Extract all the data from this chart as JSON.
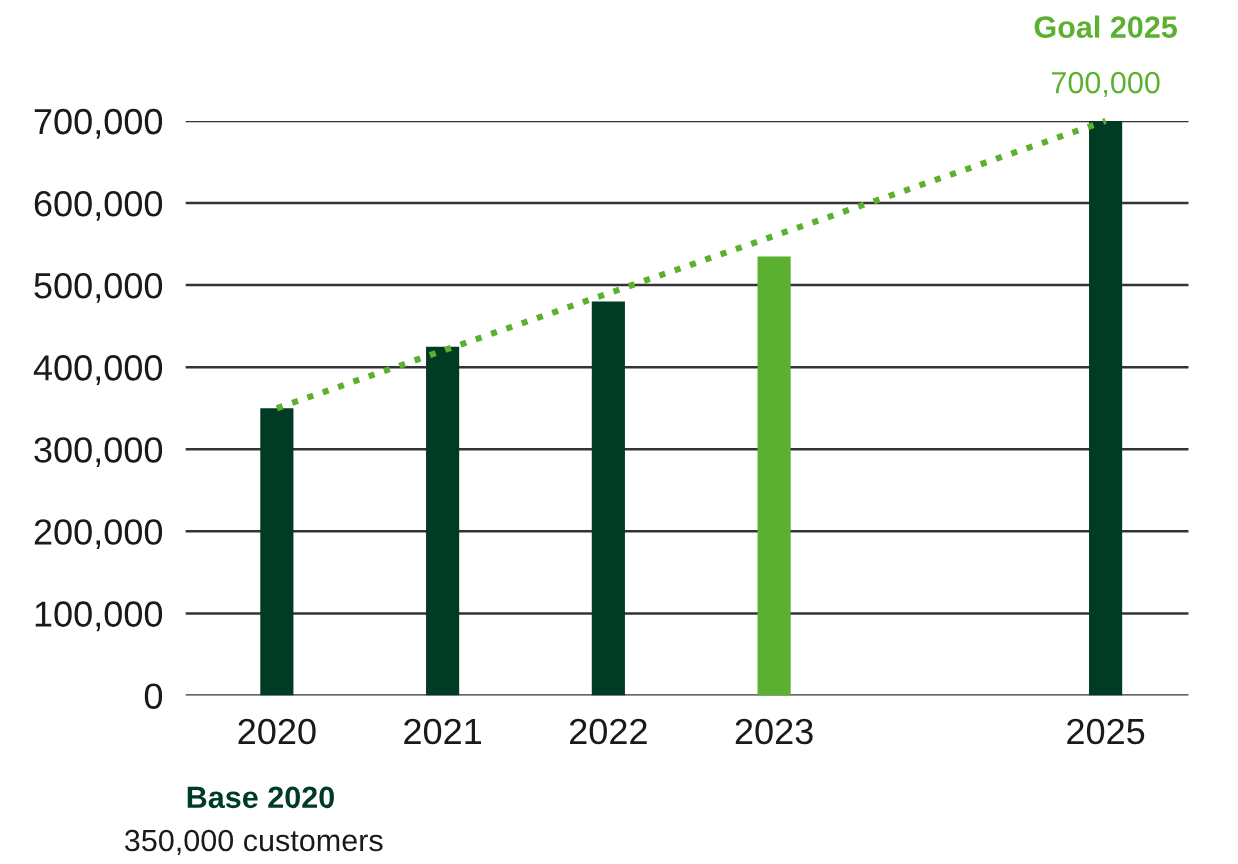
{
  "chart_data": {
    "type": "bar",
    "categories": [
      "2020",
      "2021",
      "2022",
      "2023",
      null,
      "2025"
    ],
    "series": [
      {
        "colors": [
          "#003b24",
          "#003b24",
          "#003b24",
          "#5bb030",
          null,
          "#003b24"
        ],
        "values": [
          350000,
          425000,
          480000,
          535000,
          null,
          700000
        ]
      },
      {
        "type": "line",
        "color": "#5bb030",
        "values": [
          350000,
          null,
          null,
          null,
          null,
          700000
        ],
        "line_style": "dotted"
      }
    ],
    "ylim": [
      0,
      700000
    ],
    "yticks": [
      {
        "value": 0,
        "label": "0"
      },
      {
        "value": 100000,
        "label": "100,000"
      },
      {
        "value": 200000,
        "label": "200,000"
      },
      {
        "value": 300000,
        "label": "300,000"
      },
      {
        "value": 400000,
        "label": "400,000"
      },
      {
        "value": 500000,
        "label": "500,000"
      },
      {
        "value": 600000,
        "label": "600,000"
      },
      {
        "value": 700000,
        "label": "700,000"
      }
    ],
    "grid": "y",
    "annotations": [
      {
        "text": "Goal 2025",
        "x": "2025",
        "y": 700000
      },
      {
        "text": "700,000",
        "x": "2025",
        "y": 700000
      },
      "Base 2020",
      "350,000 customers"
    ]
  }
}
